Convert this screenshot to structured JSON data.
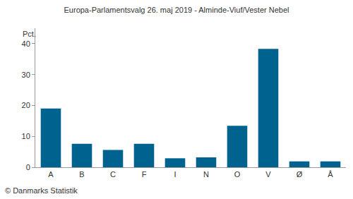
{
  "chart_data": {
    "type": "bar",
    "title": "Europa-Parlamentsvalg 26. maj 2019 - Alminde-Viuf/Vester Nebel",
    "ylabel": "Pct.",
    "source": "© Danmarks Statistik",
    "categories": [
      "A",
      "B",
      "C",
      "F",
      "I",
      "N",
      "O",
      "V",
      "Ø",
      "Å"
    ],
    "values": [
      19.0,
      7.6,
      5.6,
      7.6,
      2.9,
      3.2,
      13.4,
      38.3,
      1.9,
      1.9
    ],
    "color": "#00628f",
    "ylim": [
      0,
      45
    ],
    "yticks": [
      0,
      10,
      20,
      30,
      40
    ],
    "grid": false
  }
}
